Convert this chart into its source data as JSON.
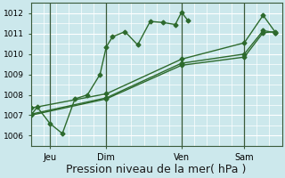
{
  "bg_color": "#cce8ec",
  "grid_color": "#ffffff",
  "line_color": "#2d6a2d",
  "xlabel": "Pression niveau de la mer( hPa )",
  "xlabel_fontsize": 9,
  "yticks": [
    1006,
    1007,
    1008,
    1009,
    1010,
    1011,
    1012
  ],
  "ylim": [
    1005.5,
    1012.5
  ],
  "xlim": [
    0,
    20
  ],
  "xtick_positions": [
    1.5,
    6,
    12,
    17
  ],
  "xtick_labels": [
    "Jeu",
    "Dim",
    "Ven",
    "Sam"
  ],
  "vline_positions": [
    1.5,
    6,
    12,
    17
  ],
  "series1_x": [
    0.0,
    0.5,
    1.5,
    2.5,
    3.5,
    4.5,
    5.5,
    6.0,
    6.5,
    7.5,
    8.5,
    9.5,
    10.5,
    11.5,
    12.0,
    12.5
  ],
  "series1_y": [
    1007.0,
    1007.4,
    1006.6,
    1006.1,
    1007.8,
    1008.0,
    1009.0,
    1010.35,
    1010.85,
    1011.1,
    1010.45,
    1011.6,
    1011.55,
    1011.45,
    1012.05,
    1011.65
  ],
  "series2_x": [
    0.0,
    6.0,
    12.0,
    17.0,
    18.5,
    19.5
  ],
  "series2_y": [
    1007.0,
    1007.8,
    1009.45,
    1009.85,
    1011.05,
    1011.1
  ],
  "series3_x": [
    0.0,
    6.0,
    12.0,
    17.0,
    18.5,
    19.5
  ],
  "series3_y": [
    1007.05,
    1007.85,
    1009.55,
    1010.0,
    1011.15,
    1011.05
  ],
  "series4_x": [
    0.0,
    6.0,
    12.0,
    17.0,
    18.5,
    19.5
  ],
  "series4_y": [
    1007.35,
    1008.05,
    1009.75,
    1010.55,
    1011.9,
    1011.05
  ]
}
